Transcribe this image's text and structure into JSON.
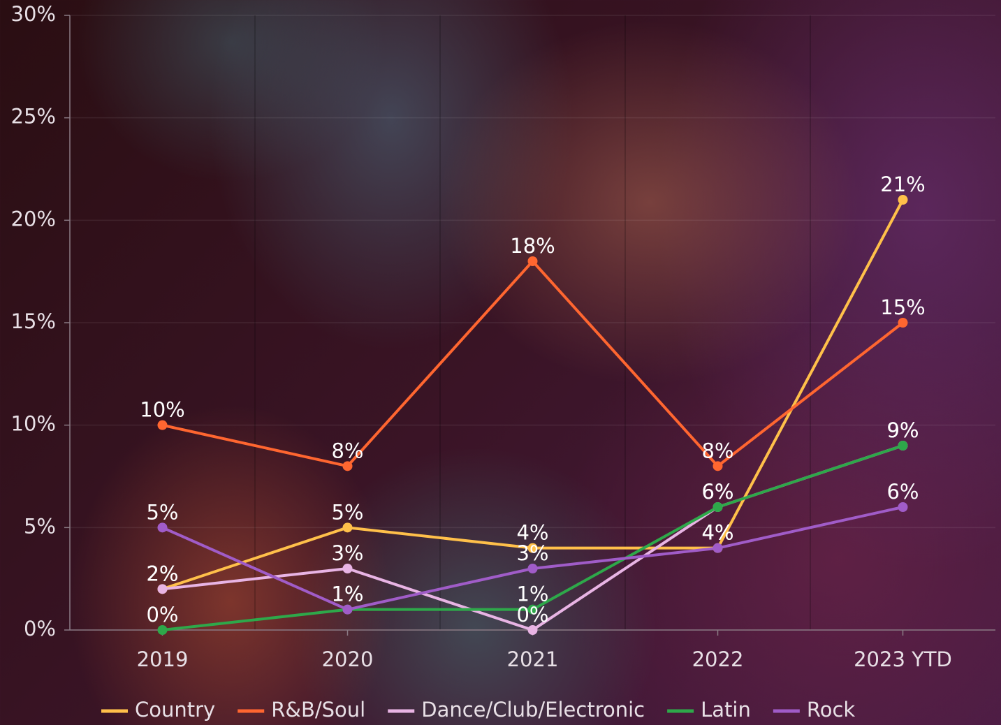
{
  "chart_data": {
    "type": "line",
    "categories": [
      "2019",
      "2020",
      "2021",
      "2022",
      "2023 YTD"
    ],
    "series": [
      {
        "name": "Country",
        "color": "#ffc04a",
        "values": [
          2,
          5,
          4,
          4,
          21
        ],
        "value_labels": [
          "2%",
          "5%",
          "4%",
          "4%",
          "21%"
        ]
      },
      {
        "name": "R&B/Soul",
        "color": "#ff6630",
        "values": [
          10,
          8,
          18,
          8,
          15
        ],
        "value_labels": [
          "10%",
          "8%",
          "18%",
          "8%",
          "15%"
        ]
      },
      {
        "name": "Dance/Club/Electronic",
        "color": "#e8b4e4",
        "values": [
          2,
          3,
          0,
          6,
          9
        ],
        "value_labels": [
          "2%",
          "3%",
          "0%",
          "6%",
          "9%"
        ]
      },
      {
        "name": "Latin",
        "color": "#2ea84a",
        "values": [
          0,
          1,
          1,
          6,
          9
        ],
        "value_labels": [
          "0%",
          "1%",
          "1%",
          "6%",
          "9%"
        ]
      },
      {
        "name": "Rock",
        "color": "#a05cc8",
        "values": [
          5,
          1,
          3,
          4,
          6
        ],
        "value_labels": [
          "5%",
          "1%",
          "3%",
          "4%",
          "6%"
        ]
      }
    ],
    "ylim": [
      0,
      30
    ],
    "yticks": [
      {
        "value": 0,
        "label": "0%"
      },
      {
        "value": 5,
        "label": "5%"
      },
      {
        "value": 10,
        "label": "10%"
      },
      {
        "value": 15,
        "label": "15%"
      },
      {
        "value": 20,
        "label": "20%"
      },
      {
        "value": 25,
        "label": "25%"
      },
      {
        "value": 30,
        "label": "30%"
      }
    ],
    "grid": true
  }
}
